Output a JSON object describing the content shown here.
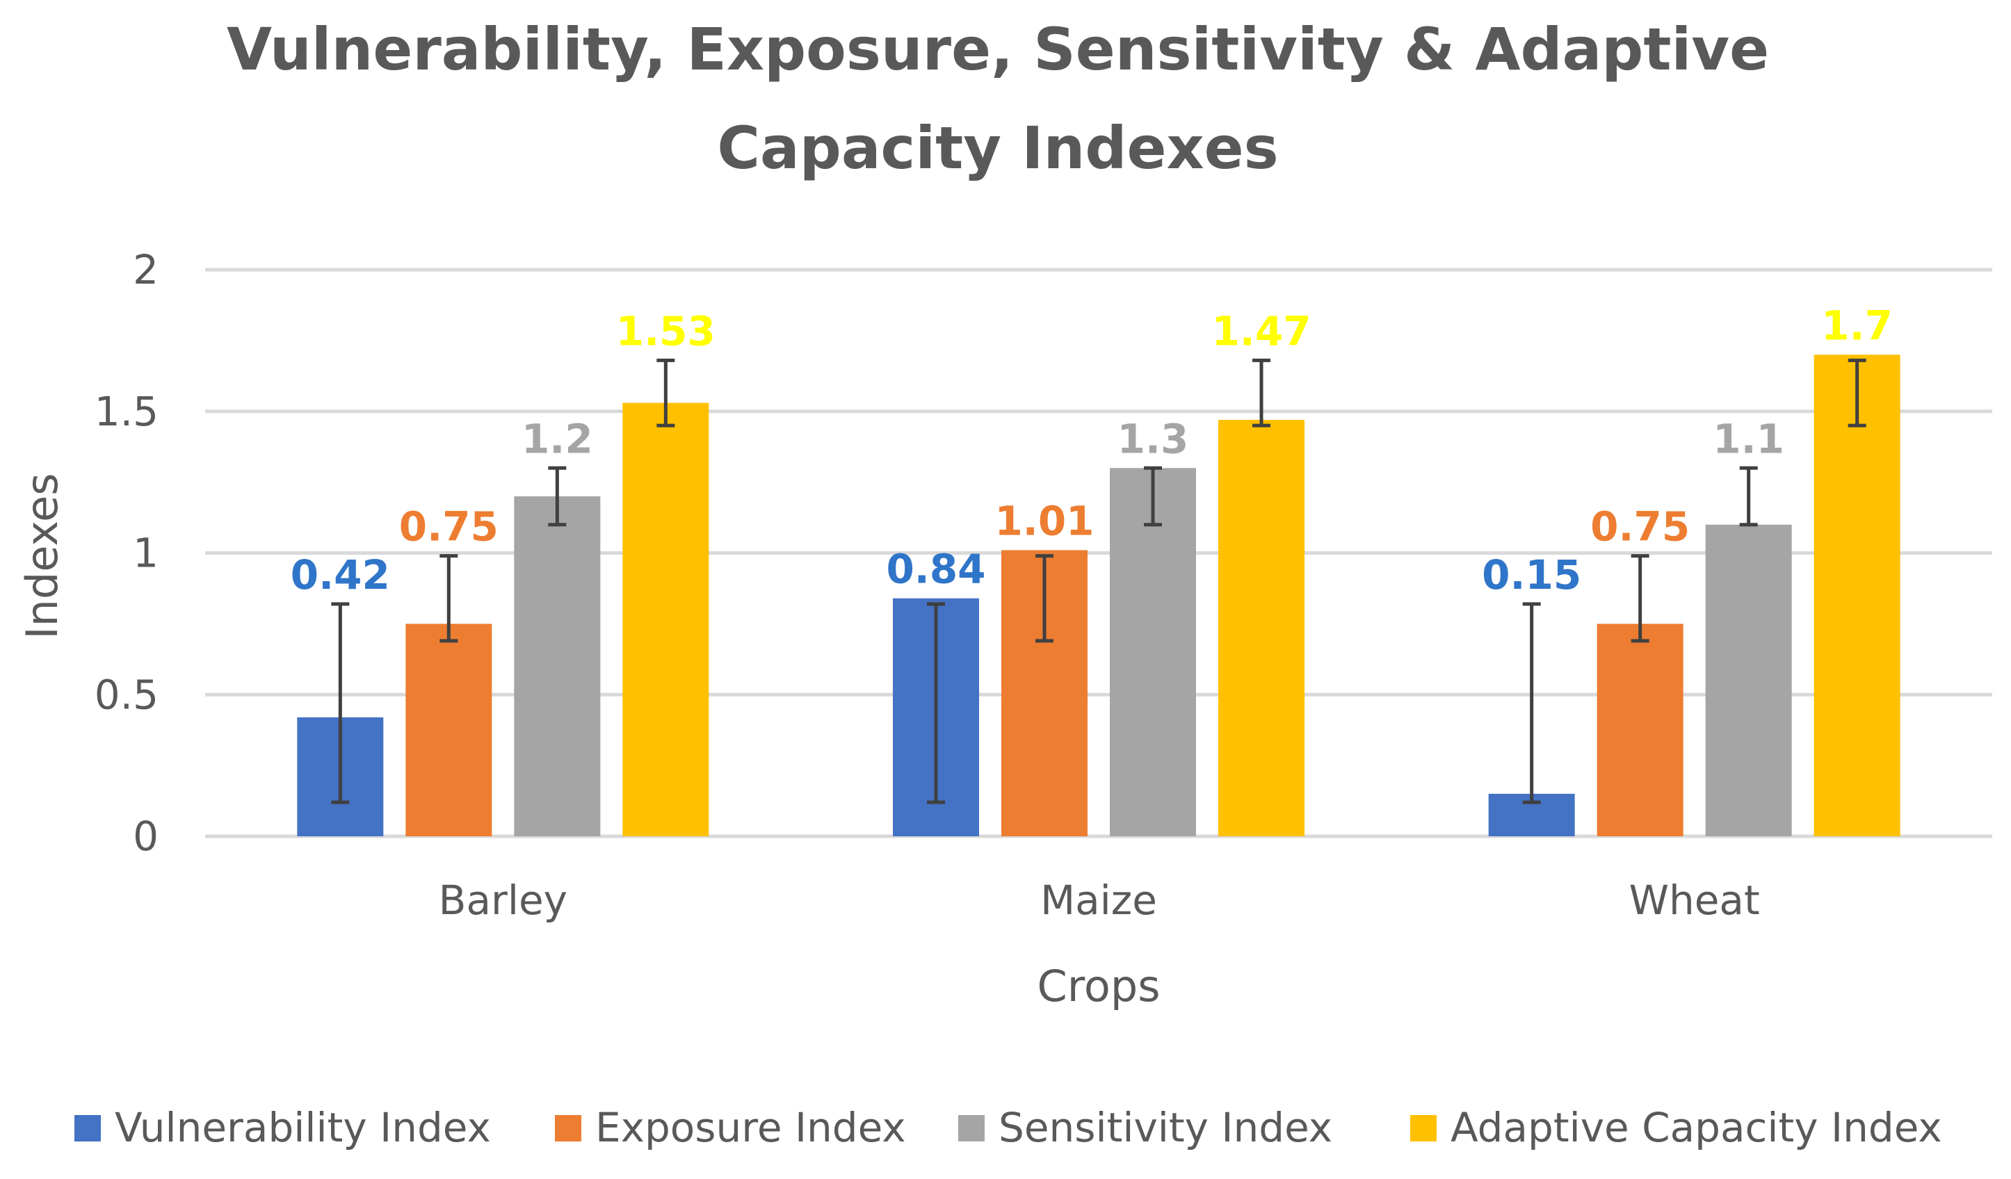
{
  "chart_data": {
    "type": "bar",
    "title": "Vulnerability, Exposure, Sensitivity & Adaptive Capacity Indexes",
    "title_lines": [
      "Vulnerability, Exposure, Sensitivity & Adaptive",
      "Capacity Indexes"
    ],
    "xlabel": "Crops",
    "ylabel": "Indexes",
    "ylim": [
      0,
      2
    ],
    "yticks": [
      0,
      0.5,
      1,
      1.5,
      2
    ],
    "ytick_labels": [
      "0",
      "0.5",
      "1",
      "1.5",
      "2"
    ],
    "grid": true,
    "legend_position": "bottom",
    "categories": [
      "Barley",
      "Maize",
      "Wheat"
    ],
    "series": [
      {
        "name": "Vulnerability Index",
        "color": "#4472c4",
        "label_color": "#2f75c9",
        "values": [
          0.42,
          0.84,
          0.15
        ],
        "labels": [
          "0.42",
          "0.84",
          "0.15"
        ],
        "error_low": [
          0.12,
          0.12,
          0.12
        ],
        "error_high": [
          0.82,
          0.82,
          0.82
        ]
      },
      {
        "name": "Exposure Index",
        "color": "#ed7d31",
        "label_color": "#ed7d31",
        "values": [
          0.75,
          1.01,
          0.75
        ],
        "labels": [
          "0.75",
          "1.01",
          "0.75"
        ],
        "error_low": [
          0.69,
          0.69,
          0.69
        ],
        "error_high": [
          0.99,
          0.99,
          0.99
        ]
      },
      {
        "name": "Sensitivity Index",
        "color": "#a5a5a5",
        "label_color": "#a5a5a5",
        "values": [
          1.2,
          1.3,
          1.1
        ],
        "labels": [
          "1.2",
          "1.3",
          "1.1"
        ],
        "error_low": [
          1.1,
          1.1,
          1.1
        ],
        "error_high": [
          1.3,
          1.3,
          1.3
        ]
      },
      {
        "name": "Adaptive Capacity Index",
        "color": "#ffc000",
        "label_color": "#ffff00",
        "values": [
          1.53,
          1.47,
          1.7
        ],
        "labels": [
          "1.53",
          "1.47",
          "1.7"
        ],
        "error_low": [
          1.45,
          1.45,
          1.45
        ],
        "error_high": [
          1.68,
          1.68,
          1.68
        ]
      }
    ]
  }
}
